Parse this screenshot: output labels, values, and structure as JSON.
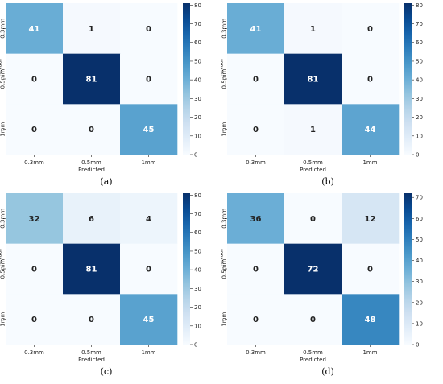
{
  "colors": {
    "cmap_low": "#f7fbff",
    "cmap_high": "#08306b",
    "text_dark": "#222222",
    "text_light": "#ffffff"
  },
  "chart_data": [
    {
      "type": "heatmap",
      "panel_label": "(a)",
      "x_categories": [
        "0.3mm",
        "0.5mm",
        "1mm"
      ],
      "y_categories": [
        "0.3mm",
        "0.5mm",
        "1mm"
      ],
      "xlabel": "Predicted",
      "ylabel": "Actual",
      "matrix": [
        [
          41,
          1,
          0
        ],
        [
          0,
          81,
          0
        ],
        [
          0,
          0,
          45
        ]
      ],
      "colorbar": {
        "min": 0,
        "max": 81,
        "ticks": [
          0,
          10,
          20,
          30,
          40,
          50,
          60,
          70,
          80
        ]
      }
    },
    {
      "type": "heatmap",
      "panel_label": "(b)",
      "x_categories": [
        "0.3mm",
        "0.5mm",
        "1mm"
      ],
      "y_categories": [
        "0.3mm",
        "0.5mm",
        "1mm"
      ],
      "xlabel": "Predicted",
      "ylabel": "Actual",
      "matrix": [
        [
          41,
          1,
          0
        ],
        [
          0,
          81,
          0
        ],
        [
          0,
          1,
          44
        ]
      ],
      "colorbar": {
        "min": 0,
        "max": 81,
        "ticks": [
          0,
          10,
          20,
          30,
          40,
          50,
          60,
          70,
          80
        ]
      }
    },
    {
      "type": "heatmap",
      "panel_label": "(c)",
      "x_categories": [
        "0.3mm",
        "0.5mm",
        "1mm"
      ],
      "y_categories": [
        "0.3mm",
        "0.5mm",
        "1mm"
      ],
      "xlabel": "Predicted",
      "ylabel": "Actual",
      "matrix": [
        [
          32,
          6,
          4
        ],
        [
          0,
          81,
          0
        ],
        [
          0,
          0,
          45
        ]
      ],
      "colorbar": {
        "min": 0,
        "max": 81,
        "ticks": [
          0,
          10,
          20,
          30,
          40,
          50,
          60,
          70,
          80
        ]
      }
    },
    {
      "type": "heatmap",
      "panel_label": "(d)",
      "x_categories": [
        "0.3mm",
        "0.5mm",
        "1mm"
      ],
      "y_categories": [
        "0.3mm",
        "0.5mm",
        "1mm"
      ],
      "xlabel": "Predicted",
      "ylabel": "Actual",
      "matrix": [
        [
          36,
          0,
          12
        ],
        [
          0,
          72,
          0
        ],
        [
          0,
          0,
          48
        ]
      ],
      "colorbar": {
        "min": 0,
        "max": 72,
        "ticks": [
          0,
          10,
          20,
          30,
          40,
          50,
          60,
          70
        ]
      }
    }
  ]
}
